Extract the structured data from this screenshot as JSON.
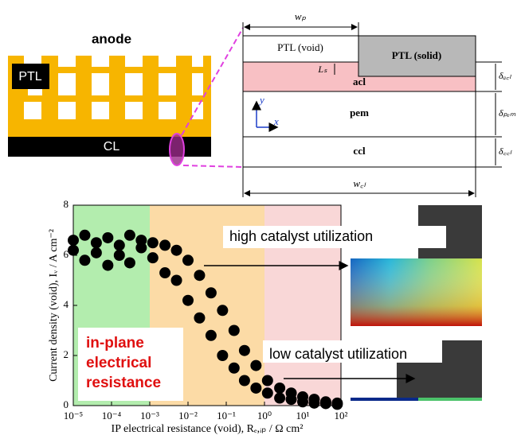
{
  "diagram": {
    "anode": "anode",
    "ptl": "PTL",
    "cl": "CL",
    "ptl_void": "PTL (void)",
    "ptl_solid": "PTL (solid)",
    "ls": "Lₛ",
    "acl": "acl",
    "pem": "pem",
    "ccl": "ccl",
    "wp": "wₚ",
    "wcl": "w꜀ₗ",
    "d_acl": "δₐ꜀ₗ",
    "d_pem": "δₚₑₘ",
    "d_ccl": "δ꜀꜀ₗ",
    "axis_y": "y",
    "axis_x": "x"
  },
  "chart_data": {
    "type": "scatter",
    "xlabel": "IP electrical resistance (void), Rₑ,ᵢₚ / Ω cm²",
    "ylabel": "Current density (void), Iᵥ / A cm⁻²",
    "log_x": true,
    "xlim": [
      1e-05,
      100
    ],
    "ylim": [
      0,
      8
    ],
    "xticks": [
      {
        "value": 1e-05,
        "label": "10⁻⁵"
      },
      {
        "value": 0.0001,
        "label": "10⁻⁴"
      },
      {
        "value": 0.001,
        "label": "10⁻³"
      },
      {
        "value": 0.01,
        "label": "10⁻²"
      },
      {
        "value": 0.1,
        "label": "10⁻¹"
      },
      {
        "value": 1,
        "label": "10⁰"
      },
      {
        "value": 10,
        "label": "10¹"
      },
      {
        "value": 100,
        "label": "10²"
      }
    ],
    "yticks": [
      0,
      2,
      4,
      6,
      8
    ],
    "color": "#000000",
    "regions": [
      {
        "from": 1e-05,
        "to": 0.001,
        "color": "#a6eaa0"
      },
      {
        "from": 0.001,
        "to": 1,
        "color": "#fbd597"
      },
      {
        "from": 1,
        "to": 100,
        "color": "#f8d0d0"
      }
    ],
    "x": [
      1e-05,
      1e-05,
      2e-05,
      2e-05,
      4e-05,
      4e-05,
      8e-05,
      8e-05,
      0.00016,
      0.00016,
      0.0003,
      0.0003,
      0.0006,
      0.0006,
      0.0012,
      0.0012,
      0.0025,
      0.0025,
      0.005,
      0.005,
      0.01,
      0.01,
      0.02,
      0.02,
      0.04,
      0.04,
      0.08,
      0.08,
      0.16,
      0.16,
      0.3,
      0.3,
      0.6,
      0.6,
      1.2,
      1.2,
      2.5,
      2.5,
      5,
      5,
      10,
      10,
      20,
      20,
      40,
      40,
      80,
      80
    ],
    "values": [
      6.6,
      6.2,
      6.8,
      5.8,
      6.5,
      6.1,
      6.7,
      5.6,
      6.4,
      6.0,
      6.8,
      5.7,
      6.3,
      6.6,
      6.5,
      5.9,
      6.4,
      5.3,
      6.2,
      5.0,
      5.8,
      4.2,
      5.2,
      3.5,
      4.5,
      2.8,
      3.8,
      2.0,
      3.0,
      1.5,
      2.2,
      1.0,
      1.6,
      0.7,
      1.0,
      0.5,
      0.7,
      0.3,
      0.5,
      0.25,
      0.35,
      0.15,
      0.25,
      0.1,
      0.15,
      0.08,
      0.1,
      0.05
    ],
    "annotations": [
      "high catalyst utilization",
      "low catalyst utilization"
    ],
    "inset_label": [
      "in-plane",
      "electrical",
      "resistance"
    ]
  }
}
